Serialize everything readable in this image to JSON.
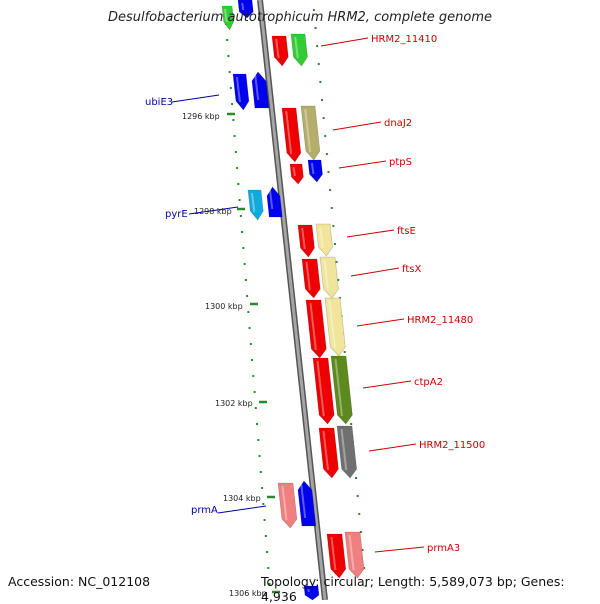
{
  "title": "Desulfobacterium autotrophicum HRM2, complete genome",
  "accession": "Accession: NC_012108",
  "topology": "Topology: circular; Length: 5,589,073 bp; Genes: 4,936",
  "colors": {
    "label_right": "#cc0000",
    "label_left": "#0000aa",
    "axis": "#808080",
    "tick": "#2a8a2a",
    "red": "#ee0000",
    "blue": "#0000ee",
    "green": "#33cc33",
    "khaki": "#b5ad6a",
    "yellow": "#f0e59a",
    "olive": "#5d8a1e",
    "gray": "#707070",
    "pink": "#f08080",
    "cyan": "#11aadd"
  },
  "scale_labels": [
    "1296 kbp",
    "1298 kbp",
    "1300 kbp",
    "1302 kbp",
    "1304 kbp",
    "1306 kbp"
  ],
  "gene_labels_right": [
    "HRM2_11410",
    "dnaJ2",
    "ptpS",
    "ftsE",
    "ftsX",
    "HRM2_11480",
    "ctpA2",
    "HRM2_11500",
    "prmA3"
  ],
  "gene_labels_left": [
    "ubiE3",
    "pyrE",
    "prmA"
  ]
}
